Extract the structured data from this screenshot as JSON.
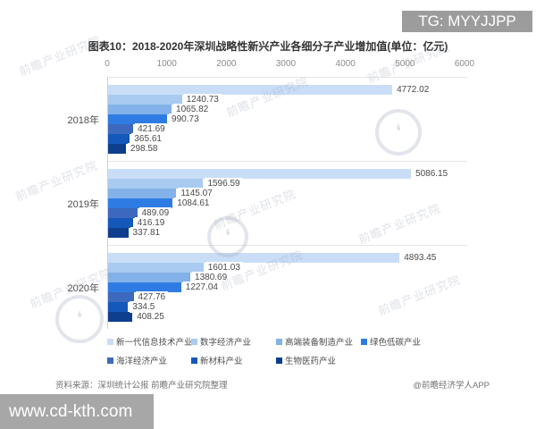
{
  "badge": {
    "text": "TG: MYYJJPP"
  },
  "title": "图表10：2018-2020年深圳战略性新兴产业各细分子产业增加值(单位：亿元)",
  "chart_data": {
    "type": "bar",
    "orientation": "horizontal",
    "title": "图表10：2018-2020年深圳战略性新兴产业各细分子产业增加值(单位：亿元)",
    "unit": "亿元",
    "categories": [
      "2018年",
      "2019年",
      "2020年"
    ],
    "series": [
      {
        "name": "新一代信息技术产业",
        "color": "#c9def6",
        "values": [
          4772.02,
          5086.15,
          4893.45
        ],
        "labels": [
          "4772.02",
          "5086.15",
          "4893.45"
        ]
      },
      {
        "name": "数字经济产业",
        "color": "#a9cbf1",
        "values": [
          1240.73,
          1596.59,
          1601.03
        ],
        "labels": [
          "1240.73",
          "1596.59",
          "1601.03"
        ]
      },
      {
        "name": "高端装备制造产业",
        "color": "#82b2e9",
        "values": [
          1065.82,
          1145.07,
          1380.69
        ],
        "labels": [
          "1065.82",
          "1145.07",
          "1380.69"
        ]
      },
      {
        "name": "绿色低碳产业",
        "color": "#2e7ce3",
        "values": [
          990.73,
          1084.61,
          1227.04
        ],
        "labels": [
          "990.73",
          "1084.61",
          "1227.04"
        ]
      },
      {
        "name": "海洋经济产业",
        "color": "#3c69bd",
        "values": [
          421.69,
          489.09,
          427.76
        ],
        "labels": [
          "421.69",
          "489.09",
          "427.76"
        ]
      },
      {
        "name": "新材料产业",
        "color": "#1458bb",
        "values": [
          365.61,
          416.19,
          334.5
        ],
        "labels": [
          "365.61",
          "416.19",
          "334.5"
        ]
      },
      {
        "name": "生物医药产业",
        "color": "#0d3f8e",
        "values": [
          298.58,
          337.81,
          408.25
        ],
        "labels": [
          "298.58",
          "337.81",
          "408.25"
        ]
      }
    ],
    "x_axis": {
      "min": 0,
      "max": 6000,
      "ticks": [
        0,
        1000,
        2000,
        3000,
        4000,
        5000,
        6000
      ]
    },
    "grid": false,
    "legend_position": "bottom"
  },
  "source": {
    "left": "资料来源：深圳统计公报 前瞻产业研究院整理",
    "right": "@前瞻经济学人APP"
  },
  "watermark": {
    "bottom_bar": "www.cd-kth.com",
    "diagonal": "前瞻产业研究院"
  }
}
